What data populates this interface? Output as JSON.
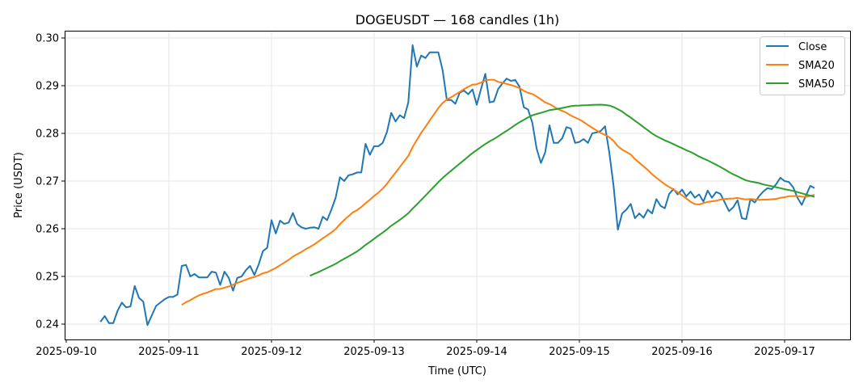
{
  "chart_data": {
    "type": "line",
    "title": "DOGEUSDT — 168 candles (1h)",
    "xlabel": "Time (UTC)",
    "ylabel": "Price (USDT)",
    "start_time": "2025-09-10T08:00Z",
    "interval_hours": 1,
    "ylim": [
      0.237,
      0.3015
    ],
    "yticks": [
      "0.24",
      "0.25",
      "0.26",
      "0.27",
      "0.28",
      "0.29",
      "0.30"
    ],
    "xticks": [
      "2025-09-10",
      "2025-09-11",
      "2025-09-12",
      "2025-09-13",
      "2025-09-14",
      "2025-09-15",
      "2025-09-16",
      "2025-09-17"
    ],
    "grid": true,
    "legend_position": "top-right",
    "colors": {
      "Close": "#1f77b4",
      "SMA20": "#ff7f0e",
      "SMA50": "#2ca02c"
    },
    "series": [
      {
        "name": "Close",
        "values": [
          0.2405,
          0.2417,
          0.2402,
          0.2402,
          0.2428,
          0.2445,
          0.2435,
          0.2437,
          0.248,
          0.2455,
          0.2447,
          0.2398,
          0.2418,
          0.2438,
          0.2445,
          0.2452,
          0.2457,
          0.2457,
          0.2462,
          0.2522,
          0.2524,
          0.25,
          0.2505,
          0.2498,
          0.2498,
          0.2498,
          0.251,
          0.2508,
          0.2482,
          0.251,
          0.2497,
          0.247,
          0.2497,
          0.25,
          0.2513,
          0.2522,
          0.2503,
          0.2525,
          0.2553,
          0.256,
          0.2618,
          0.259,
          0.2617,
          0.261,
          0.2613,
          0.2633,
          0.261,
          0.2603,
          0.26,
          0.2602,
          0.2603,
          0.26,
          0.2625,
          0.2618,
          0.264,
          0.2665,
          0.2708,
          0.27,
          0.2712,
          0.2714,
          0.2718,
          0.2718,
          0.2778,
          0.2755,
          0.2773,
          0.2773,
          0.278,
          0.2803,
          0.2843,
          0.2825,
          0.2838,
          0.2832,
          0.2865,
          0.2985,
          0.294,
          0.2963,
          0.2958,
          0.297,
          0.297,
          0.297,
          0.2933,
          0.287,
          0.287,
          0.2862,
          0.2885,
          0.289,
          0.2882,
          0.2892,
          0.286,
          0.2893,
          0.2925,
          0.2865,
          0.2867,
          0.2893,
          0.2905,
          0.2915,
          0.291,
          0.2912,
          0.2898,
          0.2855,
          0.285,
          0.2822,
          0.2768,
          0.2738,
          0.276,
          0.2817,
          0.278,
          0.278,
          0.279,
          0.2813,
          0.281,
          0.278,
          0.2782,
          0.2788,
          0.278,
          0.28,
          0.2802,
          0.2805,
          0.2815,
          0.276,
          0.269,
          0.2598,
          0.2632,
          0.264,
          0.2652,
          0.2622,
          0.2632,
          0.2623,
          0.264,
          0.2632,
          0.2662,
          0.2648,
          0.2643,
          0.2673,
          0.2683,
          0.2672,
          0.2682,
          0.2668,
          0.2678,
          0.2665,
          0.2672,
          0.2657,
          0.268,
          0.2665,
          0.2677,
          0.2673,
          0.2655,
          0.2637,
          0.2645,
          0.266,
          0.2622,
          0.262,
          0.2662,
          0.2655,
          0.2668,
          0.2678,
          0.2685,
          0.2683,
          0.2693,
          0.2707,
          0.27,
          0.2698,
          0.2687,
          0.2665,
          0.265,
          0.267,
          0.269,
          0.2685
        ]
      },
      {
        "name": "SMA20",
        "window": 20
      },
      {
        "name": "SMA50",
        "window": 50
      }
    ]
  }
}
